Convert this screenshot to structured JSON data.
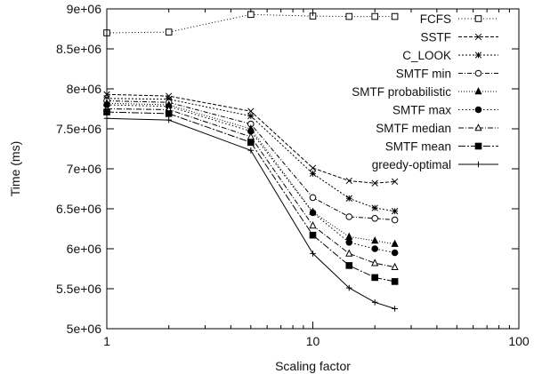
{
  "chart_data": {
    "type": "line",
    "xlabel": "Scaling factor",
    "ylabel": "Time (ms)",
    "xscale": "log",
    "xlim": [
      1,
      100
    ],
    "ylim": [
      5000000,
      9000000
    ],
    "grid": false,
    "legend_position": "top-right",
    "x_ticks": [
      {
        "value": 1,
        "label": "1"
      },
      {
        "value": 10,
        "label": "10"
      },
      {
        "value": 100,
        "label": "100"
      }
    ],
    "y_ticks": [
      {
        "value": 5000000,
        "label": "5e+06"
      },
      {
        "value": 5500000,
        "label": "5.5e+06"
      },
      {
        "value": 6000000,
        "label": "6e+06"
      },
      {
        "value": 6500000,
        "label": "6.5e+06"
      },
      {
        "value": 7000000,
        "label": "7e+06"
      },
      {
        "value": 7500000,
        "label": "7.5e+06"
      },
      {
        "value": 8000000,
        "label": "8e+06"
      },
      {
        "value": 8500000,
        "label": "8.5e+06"
      },
      {
        "value": 9000000,
        "label": "9e+06"
      }
    ],
    "x": [
      1,
      2,
      5,
      10,
      15,
      20,
      25
    ],
    "series": [
      {
        "name": "FCFS",
        "marker": "open-square",
        "dash": "1,2.5",
        "values": [
          8700000,
          8710000,
          8930000,
          8910000,
          8905000,
          8905000,
          8905000
        ]
      },
      {
        "name": "SSTF",
        "marker": "cross",
        "dash": "4,2",
        "values": [
          7930000,
          7910000,
          7720000,
          7010000,
          6850000,
          6820000,
          6840000
        ]
      },
      {
        "name": "C_LOOK",
        "marker": "star",
        "dash": "2,2",
        "values": [
          7880000,
          7870000,
          7660000,
          6940000,
          6630000,
          6510000,
          6470000
        ]
      },
      {
        "name": "SMTF min",
        "marker": "open-circle",
        "dash": "5,2,1,2",
        "values": [
          7850000,
          7830000,
          7560000,
          6640000,
          6400000,
          6380000,
          6360000
        ]
      },
      {
        "name": "SMTF probabilistic",
        "marker": "filled-triangle",
        "dash": "1,2",
        "values": [
          7820000,
          7800000,
          7500000,
          6460000,
          6150000,
          6100000,
          6060000
        ]
      },
      {
        "name": "SMTF max",
        "marker": "filled-circle",
        "dash": "1.5,2.5",
        "values": [
          7800000,
          7780000,
          7470000,
          6450000,
          6080000,
          6000000,
          5950000
        ]
      },
      {
        "name": "SMTF median",
        "marker": "open-triangle",
        "dash": "6,2,1,2",
        "values": [
          7750000,
          7740000,
          7400000,
          6290000,
          5940000,
          5820000,
          5770000
        ]
      },
      {
        "name": "SMTF mean",
        "marker": "filled-square",
        "dash": "8,2,2,2",
        "values": [
          7710000,
          7690000,
          7330000,
          6170000,
          5790000,
          5640000,
          5590000
        ]
      },
      {
        "name": "greedy-optimal",
        "marker": "plus",
        "dash": "",
        "values": [
          7630000,
          7610000,
          7230000,
          5940000,
          5510000,
          5330000,
          5250000
        ]
      }
    ]
  }
}
